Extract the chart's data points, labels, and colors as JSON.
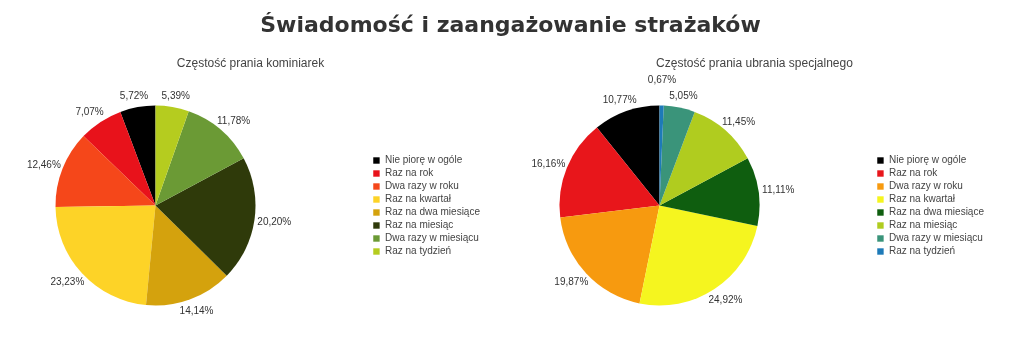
{
  "chart_data": [
    {
      "type": "other",
      "title": "Świadomość i zaangażowanie strażaków"
    },
    {
      "type": "pie",
      "title": "Częstość prania kominiarek",
      "legend": "right",
      "categories": [
        "Nie piorę w ogóle",
        "Raz na rok",
        "Dwa razy w roku",
        "Raz na kwartał",
        "Raz na dwa miesiące",
        "Raz na miesiąc",
        "Dwa razy w miesiącu",
        "Raz na tydzień"
      ],
      "values": [
        5.72,
        7.07,
        12.46,
        23.23,
        14.14,
        20.2,
        11.78,
        5.39
      ],
      "value_labels": [
        "5,72%",
        "7,07%",
        "12,46%",
        "23,23%",
        "14,14%",
        "20,20%",
        "11,78%",
        "5,39%"
      ],
      "colors": [
        "#000000",
        "#e8121b",
        "#f5471a",
        "#fdd327",
        "#d4a20d",
        "#2f3a0a",
        "#6b9a35",
        "#b5cc1f"
      ]
    },
    {
      "type": "pie",
      "title": "Częstość prania ubrania specjalnego",
      "legend": "right",
      "categories": [
        "Nie piorę w ogóle",
        "Raz na rok",
        "Dwa razy w roku",
        "Raz na kwartał",
        "Raz na dwa miesiące",
        "Raz na miesiąc",
        "Dwa razy w miesiącu",
        "Raz na tydzień"
      ],
      "values": [
        10.77,
        16.16,
        19.87,
        24.92,
        11.11,
        11.45,
        5.05,
        0.67
      ],
      "value_labels": [
        "10,77%",
        "16,16%",
        "19,87%",
        "24,92%",
        "11,11%",
        "11,45%",
        "5,05%",
        "0,67%"
      ],
      "colors": [
        "#000000",
        "#e8161b",
        "#f79a0f",
        "#f5f51f",
        "#0f5e0f",
        "#b0cc1f",
        "#3a947a",
        "#1d7ab8"
      ]
    }
  ]
}
